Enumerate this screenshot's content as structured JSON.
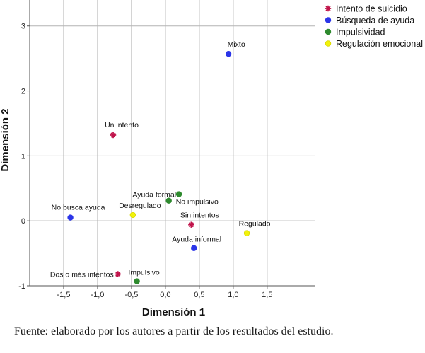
{
  "chart_data": {
    "type": "scatter",
    "xlabel": "Dimensión 1",
    "ylabel": "Dimensión 2",
    "xlim": [
      -2.0,
      2.2
    ],
    "ylim": [
      -1.0,
      3.4
    ],
    "x_ticks": [
      -1.5,
      -1.0,
      -0.5,
      0.0,
      0.5,
      1.0,
      1.5
    ],
    "x_tick_labels": [
      "-1,5",
      "-1,0",
      "-0,5",
      "0,0",
      "0,5",
      "1,0",
      "1,5"
    ],
    "y_ticks": [
      -1,
      0,
      1,
      2,
      3
    ],
    "y_tick_labels": [
      "-1",
      "0",
      "1",
      "2",
      "3"
    ],
    "grid": true,
    "legend_position": "top-right",
    "series": [
      {
        "name": "Intento de suicidio",
        "color": "#c0134a",
        "marker": "asterisk",
        "points": [
          {
            "label": "Un intento",
            "x": -0.77,
            "y": 1.32
          },
          {
            "label": "Sin intentos",
            "x": 0.38,
            "y": -0.06
          },
          {
            "label": "Dos o más intentos",
            "x": -0.7,
            "y": -0.82
          }
        ]
      },
      {
        "name": "Búsqueda de ayuda",
        "color": "#2b35e8",
        "marker": "circle",
        "points": [
          {
            "label": "Mixto",
            "x": 0.93,
            "y": 2.57
          },
          {
            "label": "No busca ayuda",
            "x": -1.4,
            "y": 0.05
          },
          {
            "label": "Ayuda informal",
            "x": 0.42,
            "y": -0.42
          }
        ]
      },
      {
        "name": "Impulsividad",
        "color": "#2e8a2e",
        "marker": "circle",
        "points": [
          {
            "label": "Ayuda formal",
            "x": 0.2,
            "y": 0.41
          },
          {
            "label": "No impulsivo",
            "x": 0.05,
            "y": 0.31
          },
          {
            "label": "Impulsivo",
            "x": -0.42,
            "y": -0.93
          }
        ]
      },
      {
        "name": "Regulación emocional",
        "color": "#f2f20a",
        "marker": "circle",
        "points": [
          {
            "label": "Desregulado",
            "x": -0.48,
            "y": 0.09
          },
          {
            "label": "Regulado",
            "x": 1.2,
            "y": -0.19
          }
        ]
      }
    ]
  },
  "caption": "Fuente: elaborado por los autores a partir de los resultados del estudio."
}
